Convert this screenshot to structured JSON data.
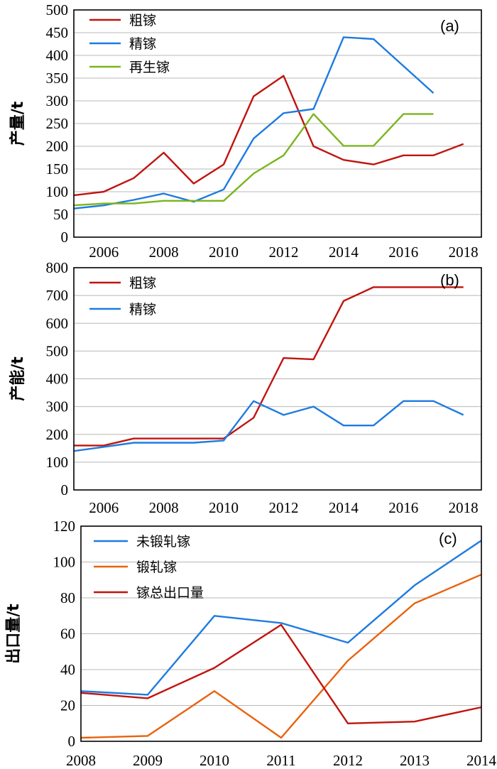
{
  "chart_data": [
    {
      "type": "line",
      "panel_label": "(a)",
      "ylabel": "产量/t",
      "ylim": [
        0,
        500
      ],
      "yticks": [
        0,
        50,
        100,
        150,
        200,
        250,
        300,
        350,
        400,
        450,
        500
      ],
      "xlim": [
        2005,
        2018.6
      ],
      "xticks": [
        2006,
        2008,
        2010,
        2012,
        2014,
        2016,
        2018
      ],
      "grid": true,
      "legend_position": "top-left",
      "series": [
        {
          "name": "粗镓",
          "color": "#c0140f",
          "x": [
            2005,
            2006,
            2007,
            2008,
            2009,
            2010,
            2011,
            2012,
            2013,
            2014,
            2015,
            2016,
            2017,
            2018
          ],
          "y": [
            92,
            100,
            130,
            186,
            118,
            160,
            310,
            355,
            200,
            170,
            160,
            180,
            180,
            205
          ]
        },
        {
          "name": "精镓",
          "color": "#1e7be0",
          "x": [
            2005,
            2006,
            2007,
            2008,
            2009,
            2010,
            2011,
            2012,
            2013,
            2014,
            2015,
            2017
          ],
          "y": [
            63,
            70,
            82,
            96,
            78,
            105,
            217,
            273,
            282,
            440,
            436,
            317
          ]
        },
        {
          "name": "再生镓",
          "color": "#7ab51d",
          "x": [
            2005,
            2006,
            2007,
            2008,
            2009,
            2010,
            2011,
            2012,
            2013,
            2014,
            2015,
            2016,
            2017
          ],
          "y": [
            70,
            74,
            74,
            80,
            80,
            80,
            140,
            180,
            271,
            201,
            201,
            271,
            271
          ]
        }
      ]
    },
    {
      "type": "line",
      "panel_label": "(b)",
      "ylabel": "产能/t",
      "ylim": [
        0,
        800
      ],
      "yticks": [
        0,
        100,
        200,
        300,
        400,
        500,
        600,
        700,
        800
      ],
      "xlim": [
        2005,
        2018.6
      ],
      "xticks": [
        2006,
        2008,
        2010,
        2012,
        2014,
        2016,
        2018
      ],
      "grid": true,
      "legend_position": "top-left",
      "series": [
        {
          "name": "粗镓",
          "color": "#c0140f",
          "x": [
            2005,
            2006,
            2007,
            2008,
            2009,
            2010,
            2011,
            2012,
            2013,
            2014,
            2015,
            2016,
            2017,
            2018
          ],
          "y": [
            160,
            160,
            185,
            185,
            185,
            185,
            260,
            475,
            470,
            680,
            730,
            730,
            730,
            730
          ]
        },
        {
          "name": "精镓",
          "color": "#1e7be0",
          "x": [
            2005,
            2006,
            2007,
            2008,
            2009,
            2010,
            2011,
            2012,
            2013,
            2014,
            2015,
            2016,
            2017,
            2018
          ],
          "y": [
            140,
            155,
            170,
            170,
            170,
            178,
            320,
            270,
            300,
            232,
            232,
            320,
            320,
            270
          ]
        }
      ]
    },
    {
      "type": "line",
      "panel_label": "(c)",
      "ylabel": "出口量/t",
      "ylim": [
        0,
        120
      ],
      "yticks": [
        0,
        20,
        40,
        60,
        80,
        100,
        120
      ],
      "xlim": [
        2008,
        2014
      ],
      "xticks": [
        2008,
        2009,
        2010,
        2011,
        2012,
        2013,
        2014
      ],
      "grid": true,
      "legend_position": "top-left",
      "series": [
        {
          "name": "未锻轧镓",
          "color": "#1e7be0",
          "x": [
            2008,
            2009,
            2010,
            2011,
            2012,
            2013,
            2014
          ],
          "y": [
            28,
            26,
            70,
            66,
            55,
            87,
            112
          ]
        },
        {
          "name": "锻轧镓",
          "color": "#e8620e",
          "x": [
            2008,
            2009,
            2010,
            2011,
            2012,
            2013,
            2014
          ],
          "y": [
            2,
            3,
            28,
            2,
            45,
            77,
            93
          ]
        },
        {
          "name": "镓总出口量",
          "color": "#c0140f",
          "x": [
            2008,
            2009,
            2010,
            2011,
            2012,
            2013,
            2014
          ],
          "y": [
            27,
            24,
            41,
            65,
            10,
            11,
            19
          ]
        }
      ]
    }
  ]
}
